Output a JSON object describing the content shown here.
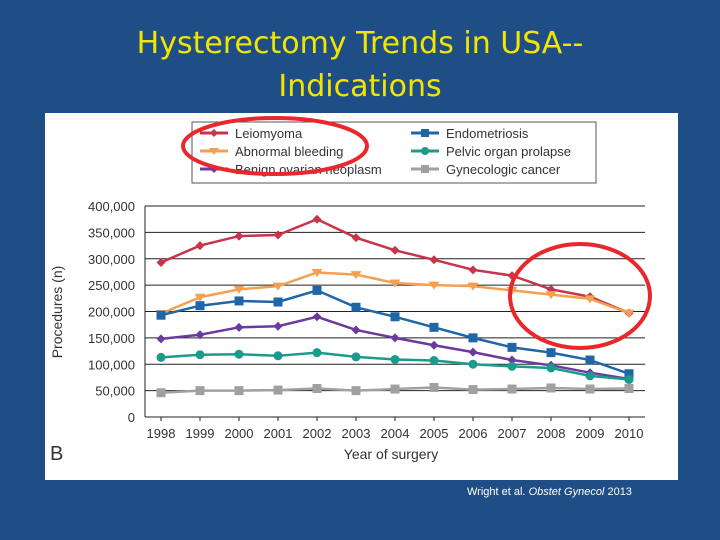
{
  "slide": {
    "title_line1": "Hysterectomy Trends in USA--",
    "title_line2": "Indications"
  },
  "citation": {
    "authors": "Wright et al.",
    "journal": "Obstet Gynecol",
    "year": "2013"
  },
  "panel_label": "B",
  "colors": {
    "background": "#1f4e86",
    "title": "#f2e600",
    "highlight_circle": "#e8282a"
  },
  "chart_data": {
    "type": "line",
    "title": "",
    "xlabel": "Year of surgery",
    "ylabel": "Procedures (n)",
    "ylim": [
      0,
      400000
    ],
    "yticks": [
      0,
      50000,
      100000,
      150000,
      200000,
      250000,
      300000,
      350000,
      400000
    ],
    "ytick_labels": [
      "0",
      "50,000",
      "100,000",
      "150,000",
      "200,000",
      "250,000",
      "300,000",
      "350,000",
      "400,000"
    ],
    "categories": [
      "1998",
      "1999",
      "2000",
      "2001",
      "2002",
      "2003",
      "2004",
      "2005",
      "2006",
      "2007",
      "2008",
      "2009",
      "2010"
    ],
    "grid": "horizontal",
    "legend_position": "top",
    "series": [
      {
        "name": "Leiomyoma",
        "color": "#c8344a",
        "marker": "diamond",
        "values": [
          293000,
          325000,
          343000,
          345000,
          375000,
          340000,
          316000,
          298000,
          279000,
          268000,
          242000,
          228000,
          197000
        ]
      },
      {
        "name": "Abnormal bleeding",
        "color": "#f5a050",
        "marker": "triangle",
        "values": [
          196000,
          227000,
          242000,
          248000,
          274000,
          270000,
          254000,
          250000,
          248000,
          240000,
          232000,
          224000,
          197000
        ]
      },
      {
        "name": "Benign ovarian neoplasm",
        "color": "#6b3a9e",
        "marker": "diamond",
        "values": [
          148000,
          156000,
          170000,
          172000,
          190000,
          165000,
          150000,
          136000,
          123000,
          108000,
          98000,
          84000,
          72000
        ]
      },
      {
        "name": "Endometriosis",
        "color": "#1f66a8",
        "marker": "square",
        "values": [
          193000,
          211000,
          220000,
          218000,
          240000,
          208000,
          190000,
          170000,
          150000,
          132000,
          122000,
          108000,
          82000
        ]
      },
      {
        "name": "Pelvic organ prolapse",
        "color": "#1a9b8c",
        "marker": "circle",
        "values": [
          113000,
          118000,
          119000,
          116000,
          122000,
          114000,
          109000,
          107000,
          100000,
          96000,
          93000,
          78000,
          71000
        ]
      },
      {
        "name": "Gynecologic cancer",
        "color": "#a0a0a0",
        "marker": "square",
        "values": [
          46000,
          50000,
          50000,
          51000,
          54000,
          50000,
          53000,
          56000,
          52000,
          53000,
          55000,
          53000,
          54000
        ]
      }
    ],
    "annotations": [
      {
        "type": "ellipse",
        "label": "Leiomyoma / Abnormal bleeding legend entries circled"
      },
      {
        "type": "ellipse",
        "label": "2007-2010 decline circled"
      }
    ]
  }
}
